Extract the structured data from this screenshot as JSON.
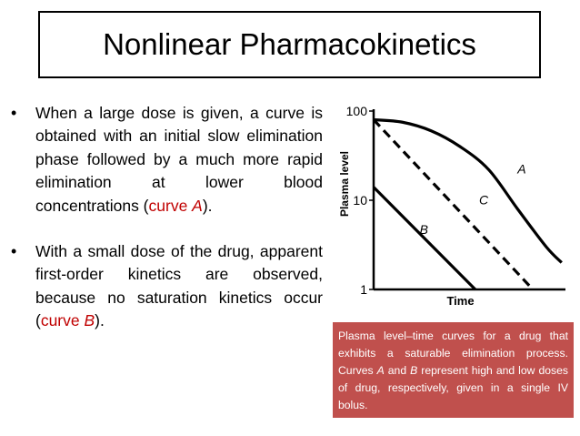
{
  "slide": {
    "title": "Nonlinear Pharmacokinetics",
    "bullets": [
      {
        "text_before": "When a large dose is given, a curve is obtained with an initial slow elimination phase followed by a much more rapid elimination at lower blood concentrations (",
        "highlight_word": "curve ",
        "highlight_letter": "A",
        "text_after": ")."
      },
      {
        "text_before": "With a small dose of the drug, apparent first-order kinetics are observed, because no saturation kinetics occur (",
        "highlight_word": "curve ",
        "highlight_letter": "B",
        "text_after": ")."
      }
    ],
    "bullet_symbol": "•",
    "caption": {
      "part1": "Plasma level–time curves for a drug that exhibits a saturable elimination process. Curves ",
      "a": "A",
      "part2": " and ",
      "b": "B",
      "part3": " represent high and low doses of drug, respectively, given in a single IV bolus."
    }
  },
  "chart_data": {
    "type": "line",
    "ylabel": "Plasma level",
    "xlabel": "Time",
    "yscale": "log",
    "y_ticks": [
      "100",
      "10",
      "1"
    ],
    "ylim": [
      1,
      100
    ],
    "xlim": [
      0,
      10
    ],
    "series": [
      {
        "name": "A",
        "style": "solid",
        "points": [
          [
            0,
            80
          ],
          [
            1.5,
            75
          ],
          [
            3,
            60
          ],
          [
            4.5,
            40
          ],
          [
            6,
            22
          ],
          [
            7.5,
            8
          ],
          [
            9,
            3
          ],
          [
            9.8,
            2
          ]
        ]
      },
      {
        "name": "C",
        "style": "dashed",
        "points": [
          [
            0,
            80
          ],
          [
            8.3,
            1
          ]
        ]
      },
      {
        "name": "B",
        "style": "solid",
        "points": [
          [
            0,
            14
          ],
          [
            5.3,
            1
          ]
        ]
      }
    ],
    "label_positions": [
      {
        "name": "A",
        "x": 7.5,
        "y": 20
      },
      {
        "name": "C",
        "x": 5.5,
        "y": 9
      },
      {
        "name": "B",
        "x": 2.4,
        "y": 4.2
      }
    ]
  }
}
